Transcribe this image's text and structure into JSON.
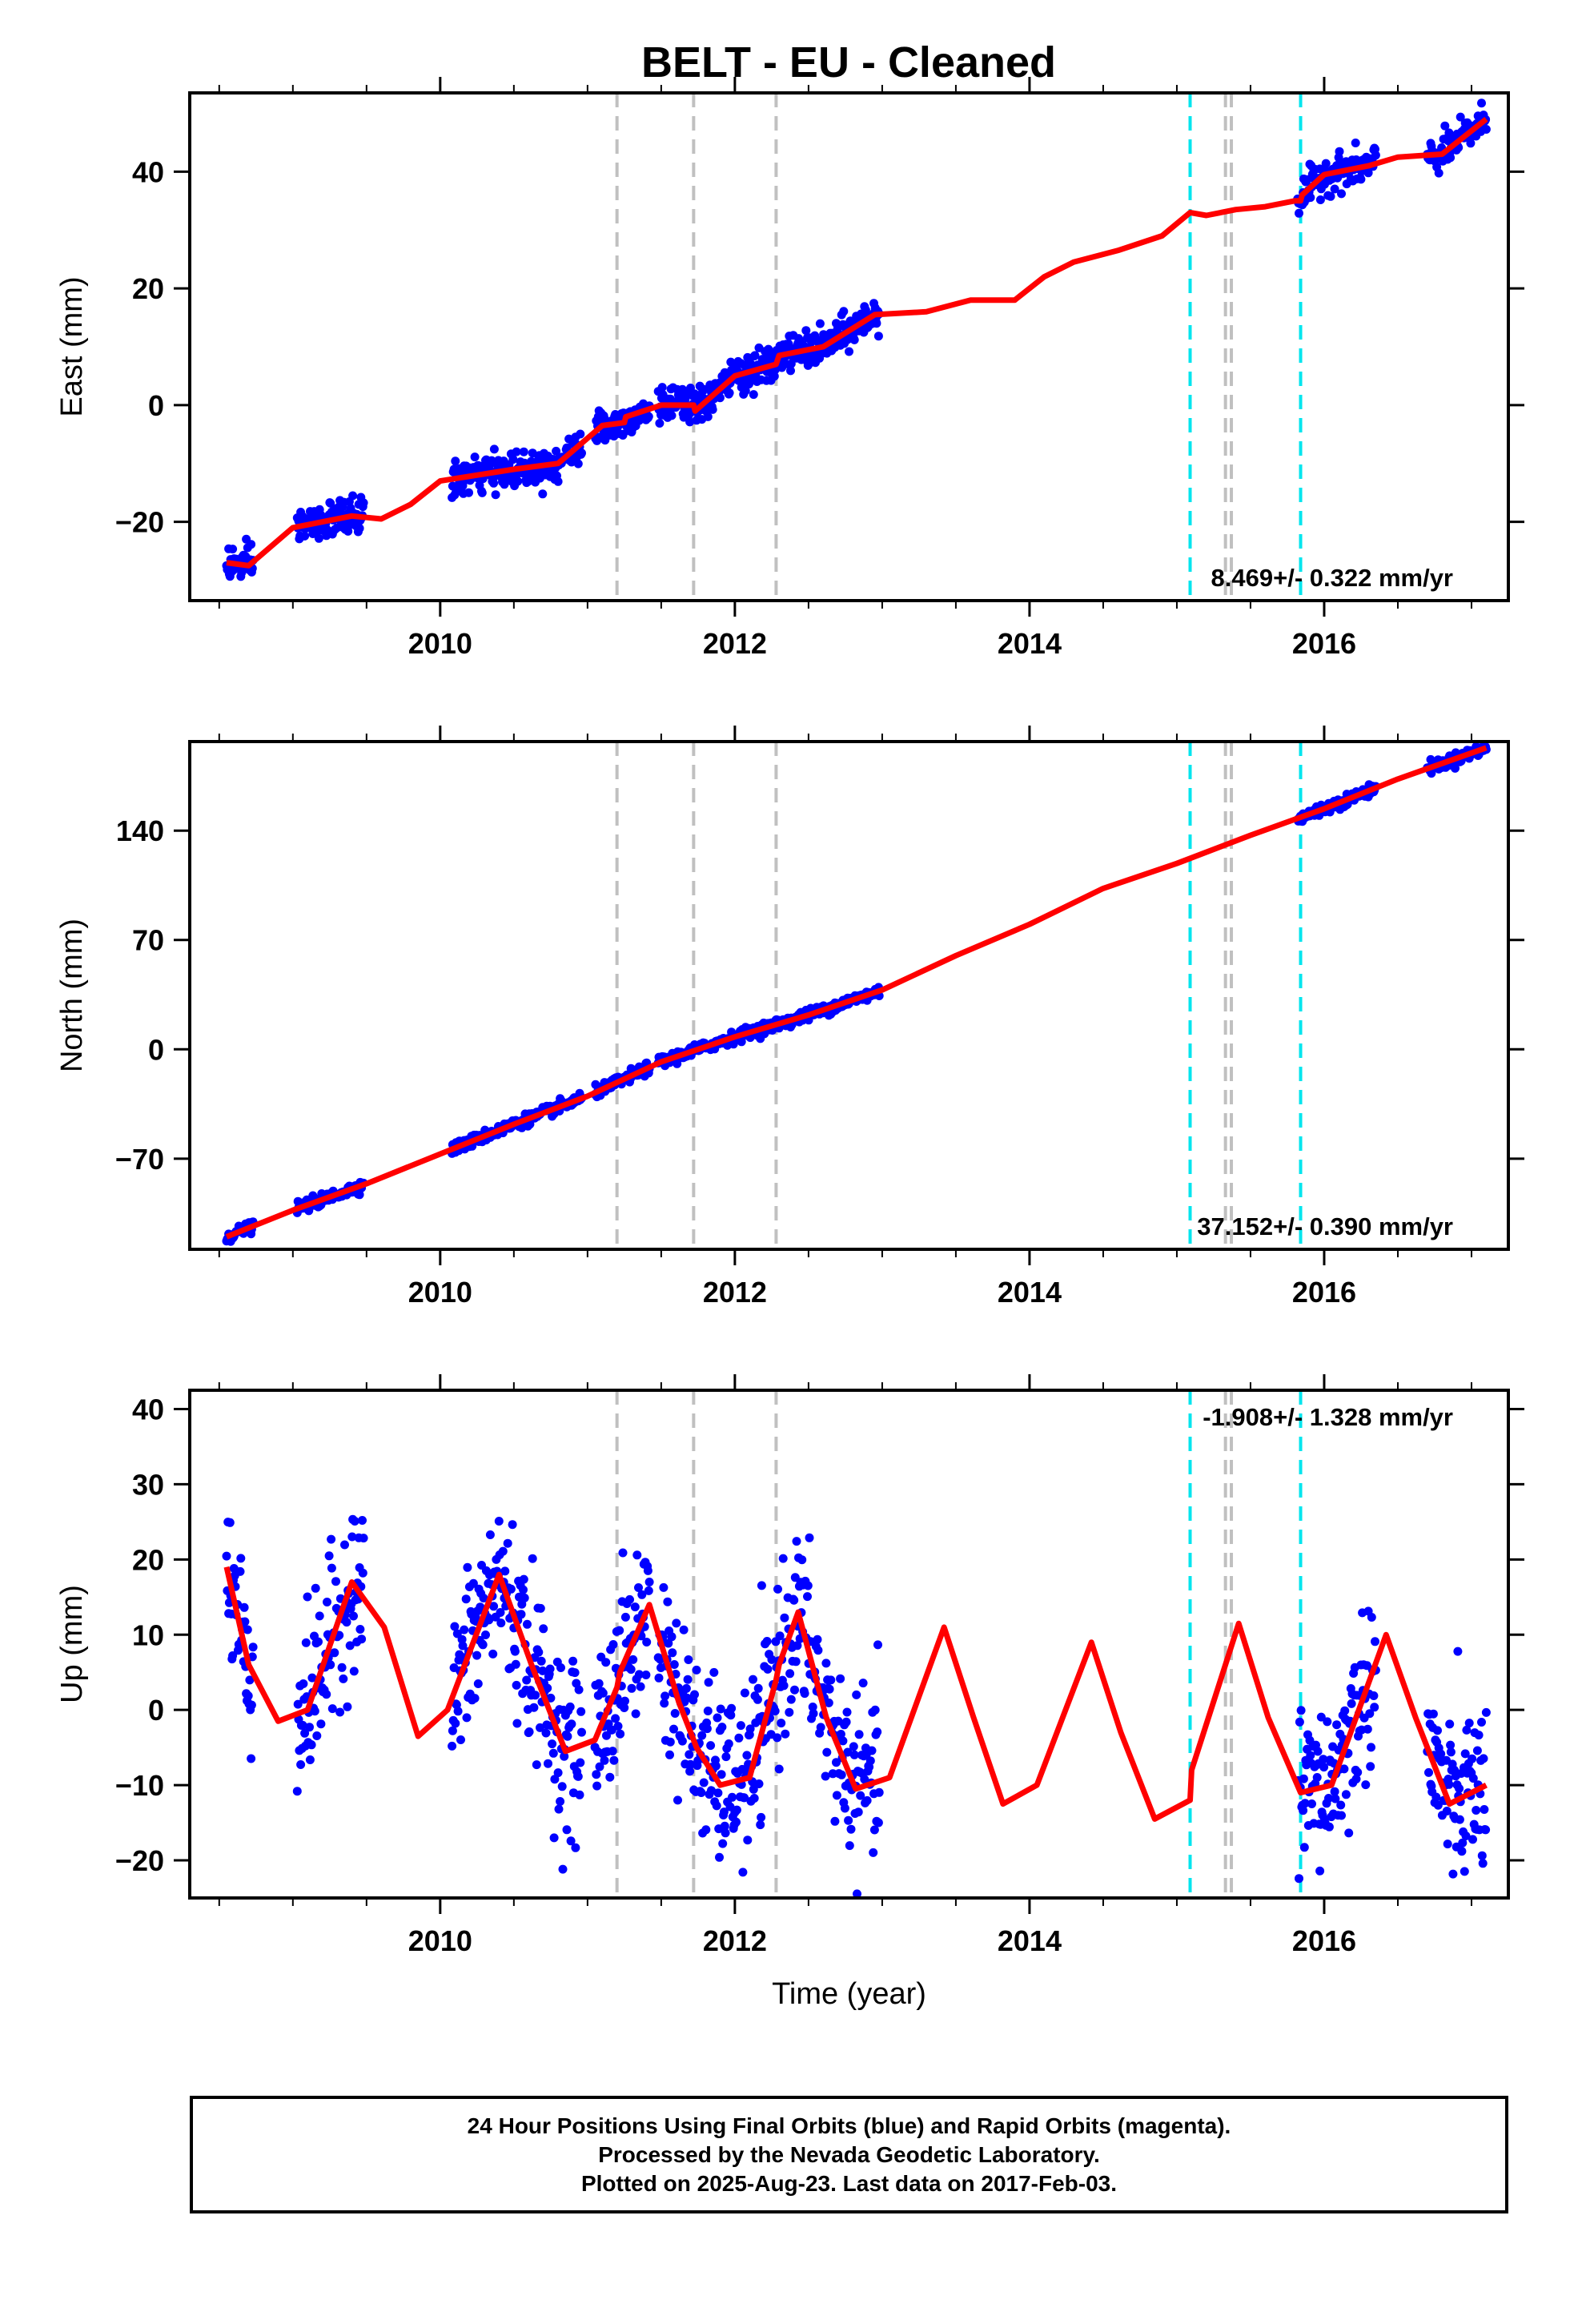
{
  "title": "BELT  - EU - Cleaned",
  "colors": {
    "final_orbits": "#0000ff",
    "model": "#ff0000",
    "event_gray": "#c0c0c0",
    "event_cyan": "#00e5ee"
  },
  "caption": {
    "line1": "24 Hour Positions Using Final Orbits (blue) and Rapid Orbits (magenta).",
    "line2": "Processed by the Nevada Geodetic Laboratory.",
    "line3": "Plotted on 2025-Aug-23. Last data on 2017-Feb-03."
  },
  "chart_data": [
    {
      "type": "scatter",
      "panel": "east",
      "ylabel": "East (mm)",
      "xlabel": "",
      "xlim": [
        2008.3,
        2017.25
      ],
      "ylim": [
        -33.5,
        53.5
      ],
      "xticks": [
        2010,
        2012,
        2014,
        2016
      ],
      "xtick_labels": [
        "2010",
        "2012",
        "2014",
        "2016"
      ],
      "yticks": [
        -20,
        0,
        20,
        40
      ],
      "ytick_labels": [
        "−20",
        "0",
        "20",
        "40"
      ],
      "grid": false,
      "rate_annotation": "8.469+/- 0.322 mm/yr",
      "gray_events": [
        2011.2,
        2011.72,
        2012.28,
        2015.33,
        2015.37
      ],
      "cyan_events": [
        2015.09,
        2015.84
      ],
      "data_segments": [
        [
          2008.55,
          2008.73
        ],
        [
          2009.03,
          2009.48
        ],
        [
          2010.08,
          2010.96
        ],
        [
          2011.05,
          2011.42
        ],
        [
          2011.48,
          2012.98
        ],
        [
          2015.82,
          2016.35
        ],
        [
          2016.7,
          2017.1
        ]
      ],
      "scatter_sd": 1.5,
      "series": [
        {
          "name": "model",
          "x": [
            2008.55,
            2008.7,
            2009.0,
            2009.4,
            2009.6,
            2009.8,
            2010.0,
            2010.5,
            2010.8,
            2011.1,
            2011.25,
            2011.26,
            2011.5,
            2011.72,
            2011.73,
            2012.0,
            2012.28,
            2012.3,
            2012.6,
            2012.95,
            2013.3,
            2013.6,
            2013.9,
            2014.1,
            2014.3,
            2014.6,
            2014.9,
            2015.09,
            2015.2,
            2015.4,
            2015.6,
            2015.8,
            2015.84,
            2015.85,
            2016.0,
            2016.3,
            2016.5,
            2016.8,
            2017.1
          ],
          "values": [
            -27,
            -27.5,
            -21,
            -19,
            -19.5,
            -17,
            -13,
            -11,
            -10,
            -3.5,
            -3,
            -2,
            0,
            0,
            -1,
            5,
            7,
            8.5,
            10,
            15.5,
            16,
            18,
            18,
            22,
            24.5,
            26.5,
            29,
            33,
            32.5,
            33.5,
            34,
            35,
            35,
            36,
            39.5,
            41,
            42.5,
            43,
            49
          ]
        }
      ]
    },
    {
      "type": "scatter",
      "panel": "north",
      "ylabel": "North (mm)",
      "xlabel": "",
      "xlim": [
        2008.3,
        2017.25
      ],
      "ylim": [
        -128,
        197
      ],
      "xticks": [
        2010,
        2012,
        2014,
        2016
      ],
      "xtick_labels": [
        "2010",
        "2012",
        "2014",
        "2016"
      ],
      "yticks": [
        -70,
        0,
        70,
        140
      ],
      "ytick_labels": [
        "−70",
        "0",
        "70",
        "140"
      ],
      "grid": false,
      "rate_annotation": "37.152+/- 0.390 mm/yr",
      "gray_events": [
        2011.2,
        2011.72,
        2012.28,
        2015.33,
        2015.37
      ],
      "cyan_events": [
        2015.09,
        2015.84
      ],
      "data_segments": [
        [
          2008.55,
          2008.73
        ],
        [
          2009.03,
          2009.48
        ],
        [
          2010.08,
          2010.96
        ],
        [
          2011.05,
          2011.42
        ],
        [
          2011.48,
          2012.98
        ],
        [
          2015.82,
          2016.35
        ],
        [
          2016.7,
          2017.1
        ]
      ],
      "scatter_sd": 1.8,
      "series": [
        {
          "name": "model",
          "x": [
            2008.55,
            2009.0,
            2009.5,
            2010.0,
            2010.5,
            2011.0,
            2011.5,
            2012.0,
            2012.5,
            2013.0,
            2013.5,
            2014.0,
            2014.5,
            2015.0,
            2015.5,
            2016.0,
            2016.5,
            2017.1
          ],
          "values": [
            -120,
            -103,
            -86,
            -67,
            -48,
            -30,
            -8,
            8,
            22,
            38,
            60,
            80,
            103,
            119,
            137,
            154,
            173,
            193
          ]
        }
      ]
    },
    {
      "type": "scatter",
      "panel": "up",
      "ylabel": "Up (mm)",
      "xlabel": "Time (year)",
      "xlim": [
        2008.3,
        2017.25
      ],
      "ylim": [
        -25,
        42.5
      ],
      "xticks": [
        2010,
        2012,
        2014,
        2016
      ],
      "xtick_labels": [
        "2010",
        "2012",
        "2014",
        "2016"
      ],
      "yticks": [
        -20,
        -10,
        0,
        10,
        20,
        30,
        40
      ],
      "ytick_labels": [
        "−20",
        "−10",
        "0",
        "10",
        "20",
        "30",
        "40"
      ],
      "grid": false,
      "rate_annotation": "-1.908+/- 1.328 mm/yr",
      "gray_events": [
        2011.2,
        2011.72,
        2012.28,
        2015.33,
        2015.37
      ],
      "cyan_events": [
        2015.09,
        2015.84
      ],
      "data_segments": [
        [
          2008.55,
          2008.73
        ],
        [
          2009.03,
          2009.48
        ],
        [
          2010.08,
          2010.96
        ],
        [
          2011.05,
          2011.42
        ],
        [
          2011.48,
          2012.98
        ],
        [
          2015.82,
          2016.35
        ],
        [
          2016.7,
          2017.1
        ]
      ],
      "scatter_sd": 5.5,
      "series": [
        {
          "name": "model",
          "x": [
            2008.55,
            2008.7,
            2008.9,
            2009.1,
            2009.4,
            2009.62,
            2009.85,
            2010.05,
            2010.4,
            2010.62,
            2010.85,
            2011.05,
            2011.2,
            2011.22,
            2011.42,
            2011.62,
            2011.72,
            2011.74,
            2011.9,
            2012.1,
            2012.28,
            2012.3,
            2012.43,
            2012.62,
            2012.82,
            2013.05,
            2013.42,
            2013.62,
            2013.82,
            2014.05,
            2014.42,
            2014.62,
            2014.85,
            2015.09,
            2015.1,
            2015.42,
            2015.62,
            2015.84,
            2016.05,
            2016.42,
            2016.62,
            2016.85,
            2017.1
          ],
          "values": [
            19,
            6,
            -1.5,
            0,
            17,
            11,
            -3.5,
            0,
            18,
            6,
            -5.5,
            -4,
            3,
            5,
            14,
            1,
            -4,
            -5,
            -10,
            -9,
            4,
            6,
            13,
            -1,
            -10.5,
            -9,
            11,
            -1,
            -12.5,
            -10,
            9,
            -3,
            -14.5,
            -12,
            -8,
            11.5,
            -1,
            -11,
            -10,
            10,
            -1,
            -12.5,
            -10
          ]
        }
      ]
    }
  ]
}
